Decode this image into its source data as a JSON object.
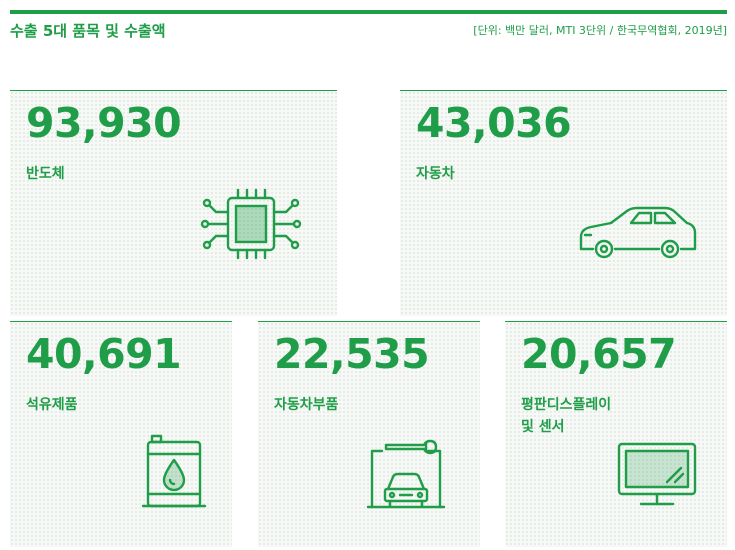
{
  "header": {
    "title": "수출 5대 품목 및 수출액",
    "source": "[단위: 백만 달러, MTI 3단위 / 한국무역협회, 2019년]"
  },
  "items": [
    {
      "value": "93,930",
      "label": "반도체",
      "icon": "semiconductor-chip-icon"
    },
    {
      "value": "43,036",
      "label": "자동차",
      "icon": "car-icon"
    },
    {
      "value": "40,691",
      "label": "석유제품",
      "icon": "oil-barrel-icon"
    },
    {
      "value": "22,535",
      "label": "자동차부품",
      "icon": "car-repair-wrench-icon"
    },
    {
      "value": "20,657",
      "label": "평판디스플레이\n및 센서",
      "icon": "flat-display-icon"
    }
  ],
  "colors": {
    "accent": "#1f9d48",
    "card_bg": "#f7f9f7"
  }
}
